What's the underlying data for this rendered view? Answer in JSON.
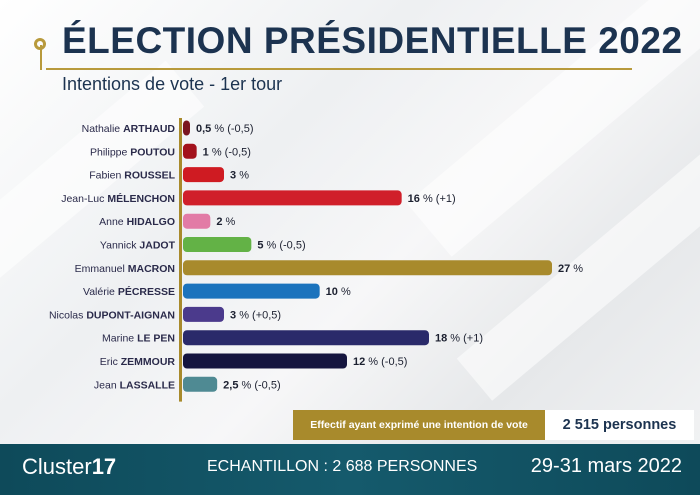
{
  "header": {
    "title": "ÉLECTION PRÉSIDENTIELLE 2022",
    "subtitle": "Intentions de vote - 1er tour"
  },
  "chart_data": {
    "type": "bar",
    "orientation": "horizontal",
    "value_unit": "%",
    "candidates": [
      {
        "first": "Nathalie",
        "last": "ARTHAUD",
        "value": 0.5,
        "value_label": "0,5",
        "change": "(-0,5)",
        "color": "#7a1420"
      },
      {
        "first": "Philippe",
        "last": "POUTOU",
        "value": 1,
        "value_label": "1",
        "change": "(-0,5)",
        "color": "#a3121c"
      },
      {
        "first": "Fabien",
        "last": "ROUSSEL",
        "value": 3,
        "value_label": "3",
        "change": "",
        "color": "#cf1b22"
      },
      {
        "first": "Jean-Luc",
        "last": "MÉLENCHON",
        "value": 16,
        "value_label": "16",
        "change": "(+1)",
        "color": "#d01f2a"
      },
      {
        "first": "Anne",
        "last": "HIDALGO",
        "value": 2,
        "value_label": "2",
        "change": "",
        "color": "#e27ba6"
      },
      {
        "first": "Yannick",
        "last": "JADOT",
        "value": 5,
        "value_label": "5",
        "change": "(-0,5)",
        "color": "#63b246"
      },
      {
        "first": "Emmanuel",
        "last": "MACRON",
        "value": 27,
        "value_label": "27",
        "change": "",
        "color": "#a88a2c"
      },
      {
        "first": "Valérie",
        "last": "PÉCRESSE",
        "value": 10,
        "value_label": "10",
        "change": "",
        "color": "#1b73bd"
      },
      {
        "first": "Nicolas",
        "last": "DUPONT-AIGNAN",
        "value": 3,
        "value_label": "3",
        "change": "(+0,5)",
        "color": "#4b3a8c"
      },
      {
        "first": "Marine",
        "last": "LE PEN",
        "value": 18,
        "value_label": "18",
        "change": "(+1)",
        "color": "#2a2a6a"
      },
      {
        "first": "Eric",
        "last": "ZEMMOUR",
        "value": 12,
        "value_label": "12",
        "change": "(-0,5)",
        "color": "#15153f"
      },
      {
        "first": "Jean",
        "last": "LASSALLE",
        "value": 2.5,
        "value_label": "2,5",
        "change": "(-0,5)",
        "color": "#4f8a93"
      }
    ],
    "xlim": [
      0,
      27
    ]
  },
  "effectif": {
    "label": "Effectif ayant exprimé une intention de vote",
    "value": "2 515 personnes"
  },
  "footer": {
    "logo_text": "Cluster",
    "logo_number": "17",
    "sample": "ECHANTILLON : 2 688 PERSONNES",
    "date": "29-31 mars 2022"
  },
  "colors": {
    "accent_gold": "#a88a2c",
    "title_navy": "#1c3350",
    "footer_teal": "#0e4a5a"
  }
}
